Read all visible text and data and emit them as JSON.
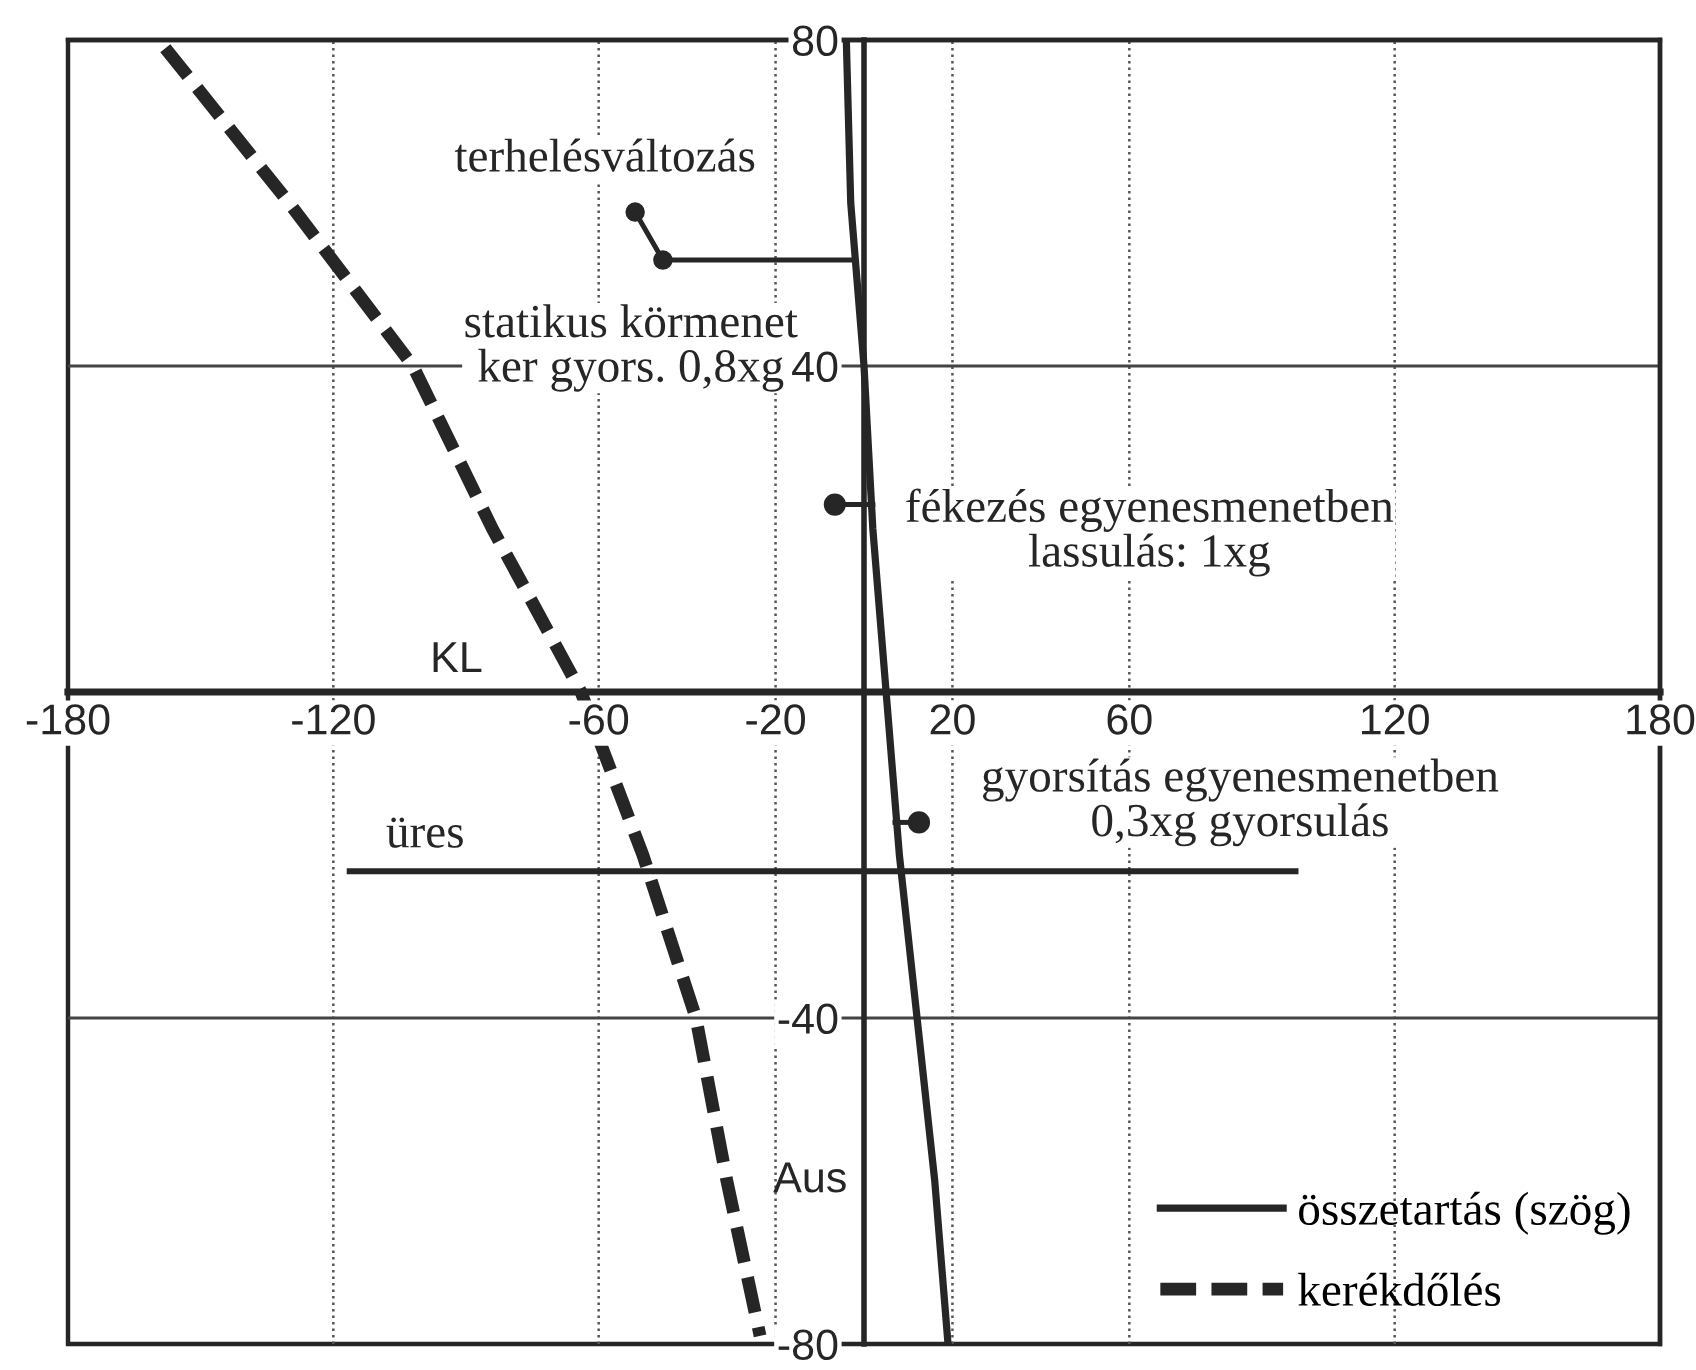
{
  "chart_data": {
    "type": "line",
    "series": [
      {
        "name": "összetartás (szög)",
        "color": "#262626",
        "line_style": "solid",
        "x": [
          -4,
          -3,
          0,
          2,
          5,
          8,
          12,
          16,
          19
        ],
        "values": [
          80,
          60,
          40,
          20,
          0,
          -20,
          -40,
          -60,
          -80
        ]
      },
      {
        "name": "kerékdőlés",
        "color": "#262626",
        "line_style": "dashed",
        "x": [
          -158,
          -130,
          -102,
          -84,
          -64,
          -50,
          -38,
          -31,
          -23.5
        ],
        "values": [
          79,
          60,
          40,
          20,
          0,
          -20,
          -40,
          -60,
          -79
        ]
      }
    ],
    "xlim": [
      -180,
      180
    ],
    "ylim": [
      -80,
      80
    ],
    "xticks": [
      -180,
      -120,
      -60,
      -20,
      20,
      60,
      120,
      180
    ],
    "yticks": [
      -80,
      -40,
      40,
      80
    ],
    "grid": true,
    "legend": "bottom right",
    "ref_lines": [
      {
        "axis": "y",
        "value": -22,
        "label": "üres",
        "color": "#262626"
      }
    ],
    "annotations": [
      {
        "text": "terhelésváltozás",
        "x": -2,
        "y": 53
      },
      {
        "text": "statikus körmenet\nker gyors. 0,8xg",
        "x": 0,
        "y": 40
      },
      {
        "text": "fékezés egyenesmenetben\nlassulás: 1xg",
        "x": 2,
        "y": 23
      },
      {
        "text": "gyorsítás egyenesmenetben\n0,3xg gyorsulás",
        "x": 7,
        "y": -16
      },
      "KL",
      "Aus"
    ]
  }
}
